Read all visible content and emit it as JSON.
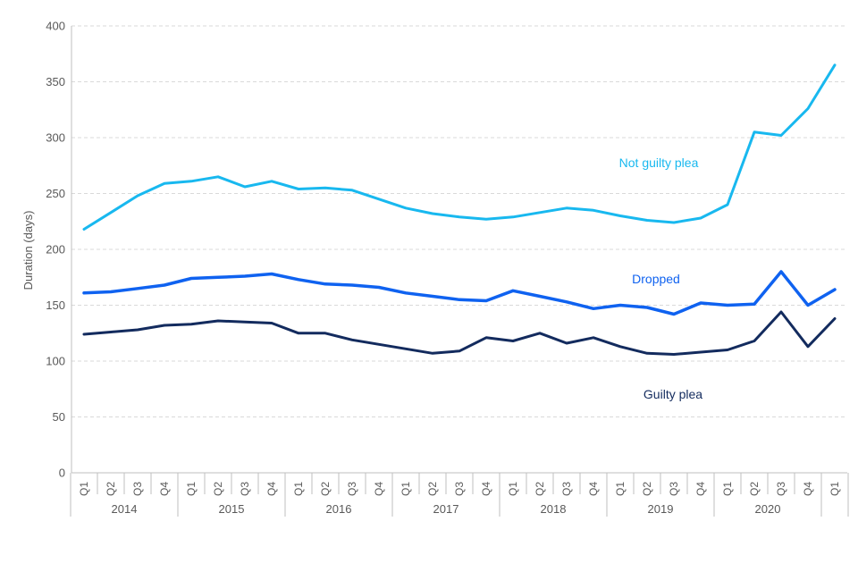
{
  "chart_data": {
    "type": "line",
    "title": "",
    "ylabel": "Duration (days)",
    "ylim": [
      0,
      400
    ],
    "yticks": [
      0,
      50,
      100,
      150,
      200,
      250,
      300,
      350,
      400
    ],
    "grid": "horizontal-dashed",
    "legend_position": "inline-labels",
    "quarters": [
      "Q1",
      "Q2",
      "Q3",
      "Q4",
      "Q1",
      "Q2",
      "Q3",
      "Q4",
      "Q1",
      "Q2",
      "Q3",
      "Q4",
      "Q1",
      "Q2",
      "Q3",
      "Q4",
      "Q1",
      "Q2",
      "Q3",
      "Q4",
      "Q1",
      "Q2",
      "Q3",
      "Q4",
      "Q1",
      "Q2",
      "Q3",
      "Q4",
      "Q1"
    ],
    "years": [
      {
        "label": "2014",
        "quarters": 4
      },
      {
        "label": "2015",
        "quarters": 4
      },
      {
        "label": "2016",
        "quarters": 4
      },
      {
        "label": "2017",
        "quarters": 4
      },
      {
        "label": "2018",
        "quarters": 4
      },
      {
        "label": "2019",
        "quarters": 4
      },
      {
        "label": "2020",
        "quarters": 4
      },
      {
        "label": "",
        "quarters": 1
      }
    ],
    "series": [
      {
        "name": "Not guilty plea",
        "color": "#18b8ef",
        "label_x": 737,
        "label_y": 187,
        "values": [
          218,
          233,
          248,
          259,
          261,
          265,
          256,
          261,
          254,
          255,
          253,
          245,
          237,
          232,
          229,
          227,
          229,
          233,
          237,
          235,
          230,
          226,
          224,
          228,
          240,
          305,
          302,
          326,
          365
        ]
      },
      {
        "name": "Dropped",
        "color": "#0f62f0",
        "label_x": 734,
        "label_y": 317,
        "values": [
          161,
          162,
          165,
          168,
          174,
          175,
          176,
          178,
          173,
          169,
          168,
          166,
          161,
          158,
          155,
          154,
          163,
          158,
          153,
          147,
          150,
          148,
          142,
          152,
          150,
          151,
          180,
          150,
          164
        ]
      },
      {
        "name": "Guilty plea",
        "color": "#132b5e",
        "label_x": 753,
        "label_y": 446,
        "values": [
          124,
          126,
          128,
          132,
          133,
          136,
          135,
          134,
          125,
          125,
          119,
          115,
          111,
          107,
          109,
          121,
          118,
          125,
          116,
          121,
          113,
          107,
          106,
          108,
          110,
          118,
          144,
          113,
          138
        ]
      }
    ],
    "colors": {
      "gridline": "#d9d9d9",
      "axis": "#bfbfbf",
      "tick_text": "#595959"
    }
  }
}
